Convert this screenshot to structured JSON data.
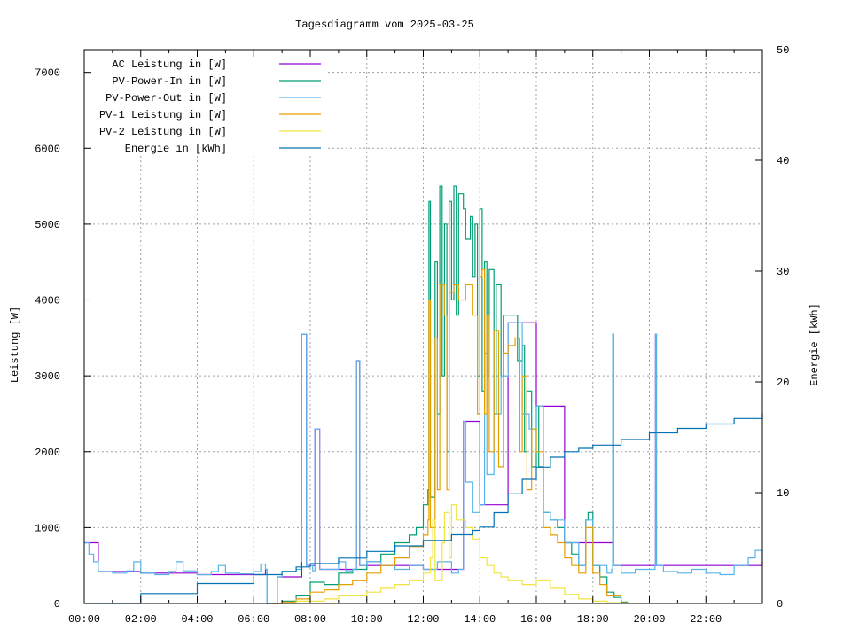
{
  "chart_data": {
    "type": "line",
    "title": "Tagesdiagramm vom 2025-03-25",
    "ylabel": "Leistung [W]",
    "y2label": "Energie [kWh]",
    "xlim": [
      "00:00",
      "24:00"
    ],
    "ylim": [
      0,
      7300
    ],
    "y2lim": [
      0,
      50
    ],
    "xticks": [
      "00:00",
      "02:00",
      "04:00",
      "06:00",
      "08:00",
      "10:00",
      "12:00",
      "14:00",
      "16:00",
      "18:00",
      "20:00",
      "22:00"
    ],
    "yticks": [
      0,
      1000,
      2000,
      3000,
      4000,
      5000,
      6000,
      7000
    ],
    "y2ticks": [
      0,
      10,
      20,
      30,
      40,
      50
    ],
    "grid": true,
    "legend_position": "top-left",
    "series": [
      {
        "name": "AC Leistung in [W]",
        "color": "#9400d3",
        "axis": "y",
        "points": [
          [
            "00:00",
            800
          ],
          [
            "00:30",
            420
          ],
          [
            "02:00",
            400
          ],
          [
            "04:00",
            380
          ],
          [
            "06:25",
            450
          ],
          [
            "06:28",
            0
          ],
          [
            "06:50",
            350
          ],
          [
            "07:42",
            3550
          ],
          [
            "07:50",
            3550
          ],
          [
            "07:52",
            500
          ],
          [
            "08:10",
            2300
          ],
          [
            "08:18",
            2300
          ],
          [
            "08:20",
            450
          ],
          [
            "09:38",
            3200
          ],
          [
            "09:42",
            3200
          ],
          [
            "09:45",
            500
          ],
          [
            "12:00",
            450
          ],
          [
            "13:15",
            450
          ],
          [
            "13:25",
            2400
          ],
          [
            "14:00",
            1300
          ],
          [
            "15:00",
            3700
          ],
          [
            "15:15",
            3700
          ],
          [
            "16:00",
            2600
          ],
          [
            "17:00",
            800
          ],
          [
            "18:42",
            3550
          ],
          [
            "18:44",
            500
          ],
          [
            "20:13",
            3550
          ],
          [
            "20:15",
            500
          ],
          [
            "24:00",
            550
          ]
        ]
      },
      {
        "name": "PV-Power-In in [W]",
        "color": "#009e73",
        "axis": "y",
        "points": [
          [
            "06:40",
            0
          ],
          [
            "07:00",
            30
          ],
          [
            "07:30",
            100
          ],
          [
            "08:00",
            280
          ],
          [
            "08:30",
            250
          ],
          [
            "09:00",
            400
          ],
          [
            "09:30",
            450
          ],
          [
            "10:00",
            550
          ],
          [
            "10:30",
            650
          ],
          [
            "11:00",
            800
          ],
          [
            "11:30",
            900
          ],
          [
            "11:45",
            1000
          ],
          [
            "12:00",
            1300
          ],
          [
            "12:10",
            1500
          ],
          [
            "12:12",
            5300
          ],
          [
            "12:15",
            1400
          ],
          [
            "12:25",
            4500
          ],
          [
            "12:30",
            2500
          ],
          [
            "12:35",
            5500
          ],
          [
            "12:40",
            3000
          ],
          [
            "12:45",
            5000
          ],
          [
            "12:50",
            2000
          ],
          [
            "12:55",
            5300
          ],
          [
            "13:00",
            4000
          ],
          [
            "13:05",
            5500
          ],
          [
            "13:10",
            3800
          ],
          [
            "13:15",
            5400
          ],
          [
            "13:25",
            5200
          ],
          [
            "13:30",
            4800
          ],
          [
            "13:40",
            5100
          ],
          [
            "13:45",
            4300
          ],
          [
            "13:50",
            5000
          ],
          [
            "13:55",
            3000
          ],
          [
            "14:00",
            5200
          ],
          [
            "14:05",
            2800
          ],
          [
            "14:10",
            4500
          ],
          [
            "14:15",
            3000
          ],
          [
            "14:20",
            4400
          ],
          [
            "14:30",
            2500
          ],
          [
            "14:35",
            4200
          ],
          [
            "14:45",
            3000
          ],
          [
            "14:50",
            3800
          ],
          [
            "15:00",
            3800
          ],
          [
            "15:15",
            3800
          ],
          [
            "15:20",
            3200
          ],
          [
            "15:30",
            3400
          ],
          [
            "15:35",
            2000
          ],
          [
            "15:40",
            2800
          ],
          [
            "15:50",
            1800
          ],
          [
            "16:00",
            2600
          ],
          [
            "16:05",
            1800
          ],
          [
            "16:15",
            1200
          ],
          [
            "16:30",
            1100
          ],
          [
            "16:45",
            1000
          ],
          [
            "17:00",
            800
          ],
          [
            "17:15",
            650
          ],
          [
            "17:30",
            500
          ],
          [
            "17:45",
            1100
          ],
          [
            "17:50",
            1200
          ],
          [
            "18:00",
            500
          ],
          [
            "18:15",
            350
          ],
          [
            "18:30",
            150
          ],
          [
            "18:45",
            80
          ],
          [
            "19:00",
            20
          ],
          [
            "19:15",
            0
          ]
        ]
      },
      {
        "name": "PV-Power-Out in [W]",
        "color": "#56b4e9",
        "axis": "y",
        "points": [
          [
            "00:00",
            800
          ],
          [
            "00:10",
            650
          ],
          [
            "00:20",
            550
          ],
          [
            "00:30",
            420
          ],
          [
            "01:00",
            400
          ],
          [
            "01:30",
            430
          ],
          [
            "01:45",
            550
          ],
          [
            "02:00",
            400
          ],
          [
            "02:30",
            380
          ],
          [
            "03:00",
            420
          ],
          [
            "03:15",
            550
          ],
          [
            "03:30",
            430
          ],
          [
            "04:00",
            380
          ],
          [
            "04:30",
            420
          ],
          [
            "04:45",
            500
          ],
          [
            "05:00",
            400
          ],
          [
            "05:30",
            390
          ],
          [
            "06:00",
            420
          ],
          [
            "06:15",
            520
          ],
          [
            "06:25",
            450
          ],
          [
            "06:28",
            0
          ],
          [
            "06:45",
            0
          ],
          [
            "06:50",
            350
          ],
          [
            "07:00",
            420
          ],
          [
            "07:30",
            450
          ],
          [
            "07:40",
            550
          ],
          [
            "07:42",
            3550
          ],
          [
            "07:50",
            3550
          ],
          [
            "07:52",
            500
          ],
          [
            "08:05",
            430
          ],
          [
            "08:10",
            2300
          ],
          [
            "08:18",
            2300
          ],
          [
            "08:20",
            450
          ],
          [
            "08:40",
            450
          ],
          [
            "09:00",
            550
          ],
          [
            "09:15",
            430
          ],
          [
            "09:30",
            450
          ],
          [
            "09:38",
            3200
          ],
          [
            "09:42",
            3200
          ],
          [
            "09:45",
            500
          ],
          [
            "10:00",
            550
          ],
          [
            "10:30",
            500
          ],
          [
            "11:00",
            450
          ],
          [
            "11:30",
            500
          ],
          [
            "12:00",
            450
          ],
          [
            "12:30",
            550
          ],
          [
            "13:00",
            400
          ],
          [
            "13:15",
            450
          ],
          [
            "13:25",
            2400
          ],
          [
            "13:30",
            1600
          ],
          [
            "13:45",
            1200
          ],
          [
            "14:00",
            1300
          ],
          [
            "14:10",
            3300
          ],
          [
            "14:15",
            1700
          ],
          [
            "14:30",
            2500
          ],
          [
            "14:45",
            3000
          ],
          [
            "15:00",
            3700
          ],
          [
            "15:15",
            3700
          ],
          [
            "15:30",
            2500
          ],
          [
            "15:45",
            2300
          ],
          [
            "16:00",
            2600
          ],
          [
            "16:15",
            1200
          ],
          [
            "16:30",
            1100
          ],
          [
            "17:00",
            800
          ],
          [
            "17:30",
            500
          ],
          [
            "17:45",
            1100
          ],
          [
            "18:00",
            500
          ],
          [
            "18:15",
            500
          ],
          [
            "18:30",
            400
          ],
          [
            "18:40",
            450
          ],
          [
            "18:42",
            3550
          ],
          [
            "18:44",
            500
          ],
          [
            "19:00",
            400
          ],
          [
            "19:30",
            450
          ],
          [
            "20:00",
            450
          ],
          [
            "20:12",
            500
          ],
          [
            "20:13",
            3550
          ],
          [
            "20:15",
            500
          ],
          [
            "20:30",
            420
          ],
          [
            "21:00",
            400
          ],
          [
            "21:30",
            450
          ],
          [
            "22:00",
            400
          ],
          [
            "22:30",
            380
          ],
          [
            "23:00",
            500
          ],
          [
            "23:30",
            600
          ],
          [
            "23:45",
            700
          ],
          [
            "24:00",
            550
          ]
        ]
      },
      {
        "name": "PV-1 Leistung in [W]",
        "color": "#e69f00",
        "axis": "y",
        "points": [
          [
            "06:40",
            0
          ],
          [
            "07:00",
            20
          ],
          [
            "07:30",
            60
          ],
          [
            "08:00",
            150
          ],
          [
            "08:30",
            180
          ],
          [
            "09:00",
            250
          ],
          [
            "09:30",
            300
          ],
          [
            "10:00",
            400
          ],
          [
            "10:30",
            500
          ],
          [
            "11:00",
            600
          ],
          [
            "11:30",
            750
          ],
          [
            "12:00",
            900
          ],
          [
            "12:10",
            1100
          ],
          [
            "12:12",
            4000
          ],
          [
            "12:15",
            1000
          ],
          [
            "12:25",
            3500
          ],
          [
            "12:30",
            1500
          ],
          [
            "12:35",
            4200
          ],
          [
            "12:45",
            3800
          ],
          [
            "12:50",
            1500
          ],
          [
            "12:55",
            4100
          ],
          [
            "13:05",
            4200
          ],
          [
            "13:15",
            4000
          ],
          [
            "13:30",
            4200
          ],
          [
            "13:45",
            3800
          ],
          [
            "13:55",
            2500
          ],
          [
            "14:00",
            4300
          ],
          [
            "14:05",
            4400
          ],
          [
            "14:10",
            2500
          ],
          [
            "14:15",
            3800
          ],
          [
            "14:20",
            2000
          ],
          [
            "14:30",
            3600
          ],
          [
            "14:40",
            1800
          ],
          [
            "14:50",
            3300
          ],
          [
            "15:00",
            3400
          ],
          [
            "15:15",
            3500
          ],
          [
            "15:25",
            2000
          ],
          [
            "15:30",
            3000
          ],
          [
            "15:40",
            1500
          ],
          [
            "15:50",
            2300
          ],
          [
            "16:00",
            2000
          ],
          [
            "16:15",
            1000
          ],
          [
            "16:30",
            900
          ],
          [
            "16:45",
            800
          ],
          [
            "17:00",
            600
          ],
          [
            "17:15",
            500
          ],
          [
            "17:30",
            400
          ],
          [
            "17:45",
            1000
          ],
          [
            "18:00",
            400
          ],
          [
            "18:15",
            250
          ],
          [
            "18:30",
            100
          ],
          [
            "19:00",
            10
          ],
          [
            "19:15",
            0
          ]
        ]
      },
      {
        "name": "PV-2 Leistung in [W]",
        "color": "#f0e442",
        "axis": "y",
        "points": [
          [
            "06:40",
            0
          ],
          [
            "07:30",
            30
          ],
          [
            "08:30",
            60
          ],
          [
            "09:00",
            100
          ],
          [
            "10:00",
            150
          ],
          [
            "10:30",
            200
          ],
          [
            "11:00",
            250
          ],
          [
            "11:30",
            300
          ],
          [
            "12:00",
            400
          ],
          [
            "12:15",
            600
          ],
          [
            "12:20",
            1100
          ],
          [
            "12:25",
            300
          ],
          [
            "12:40",
            800
          ],
          [
            "12:45",
            1200
          ],
          [
            "12:55",
            600
          ],
          [
            "13:00",
            1300
          ],
          [
            "13:10",
            1100
          ],
          [
            "13:20",
            1100
          ],
          [
            "13:30",
            1000
          ],
          [
            "13:45",
            850
          ],
          [
            "14:00",
            600
          ],
          [
            "14:15",
            500
          ],
          [
            "14:30",
            400
          ],
          [
            "14:45",
            350
          ],
          [
            "15:00",
            300
          ],
          [
            "15:30",
            250
          ],
          [
            "16:00",
            300
          ],
          [
            "16:30",
            200
          ],
          [
            "17:00",
            120
          ],
          [
            "17:30",
            60
          ],
          [
            "18:00",
            30
          ],
          [
            "18:30",
            10
          ],
          [
            "19:00",
            0
          ]
        ]
      },
      {
        "name": "Energie in [kWh]",
        "color": "#0072b2",
        "axis": "y2",
        "points": [
          [
            "00:00",
            0
          ],
          [
            "02:00",
            0.9
          ],
          [
            "04:00",
            1.8
          ],
          [
            "06:00",
            2.6
          ],
          [
            "07:00",
            2.9
          ],
          [
            "07:30",
            3.3
          ],
          [
            "08:00",
            3.6
          ],
          [
            "09:00",
            4.1
          ],
          [
            "10:00",
            4.7
          ],
          [
            "11:00",
            5.2
          ],
          [
            "12:00",
            5.7
          ],
          [
            "13:00",
            6.2
          ],
          [
            "13:45",
            6.6
          ],
          [
            "14:00",
            6.9
          ],
          [
            "14:30",
            8.2
          ],
          [
            "15:00",
            9.9
          ],
          [
            "15:30",
            11.2
          ],
          [
            "16:00",
            12.3
          ],
          [
            "16:30",
            13.2
          ],
          [
            "17:00",
            13.7
          ],
          [
            "17:30",
            14.0
          ],
          [
            "18:00",
            14.3
          ],
          [
            "19:00",
            14.8
          ],
          [
            "20:00",
            15.4
          ],
          [
            "21:00",
            15.8
          ],
          [
            "22:00",
            16.2
          ],
          [
            "23:00",
            16.7
          ],
          [
            "24:00",
            17.2
          ]
        ]
      }
    ]
  }
}
